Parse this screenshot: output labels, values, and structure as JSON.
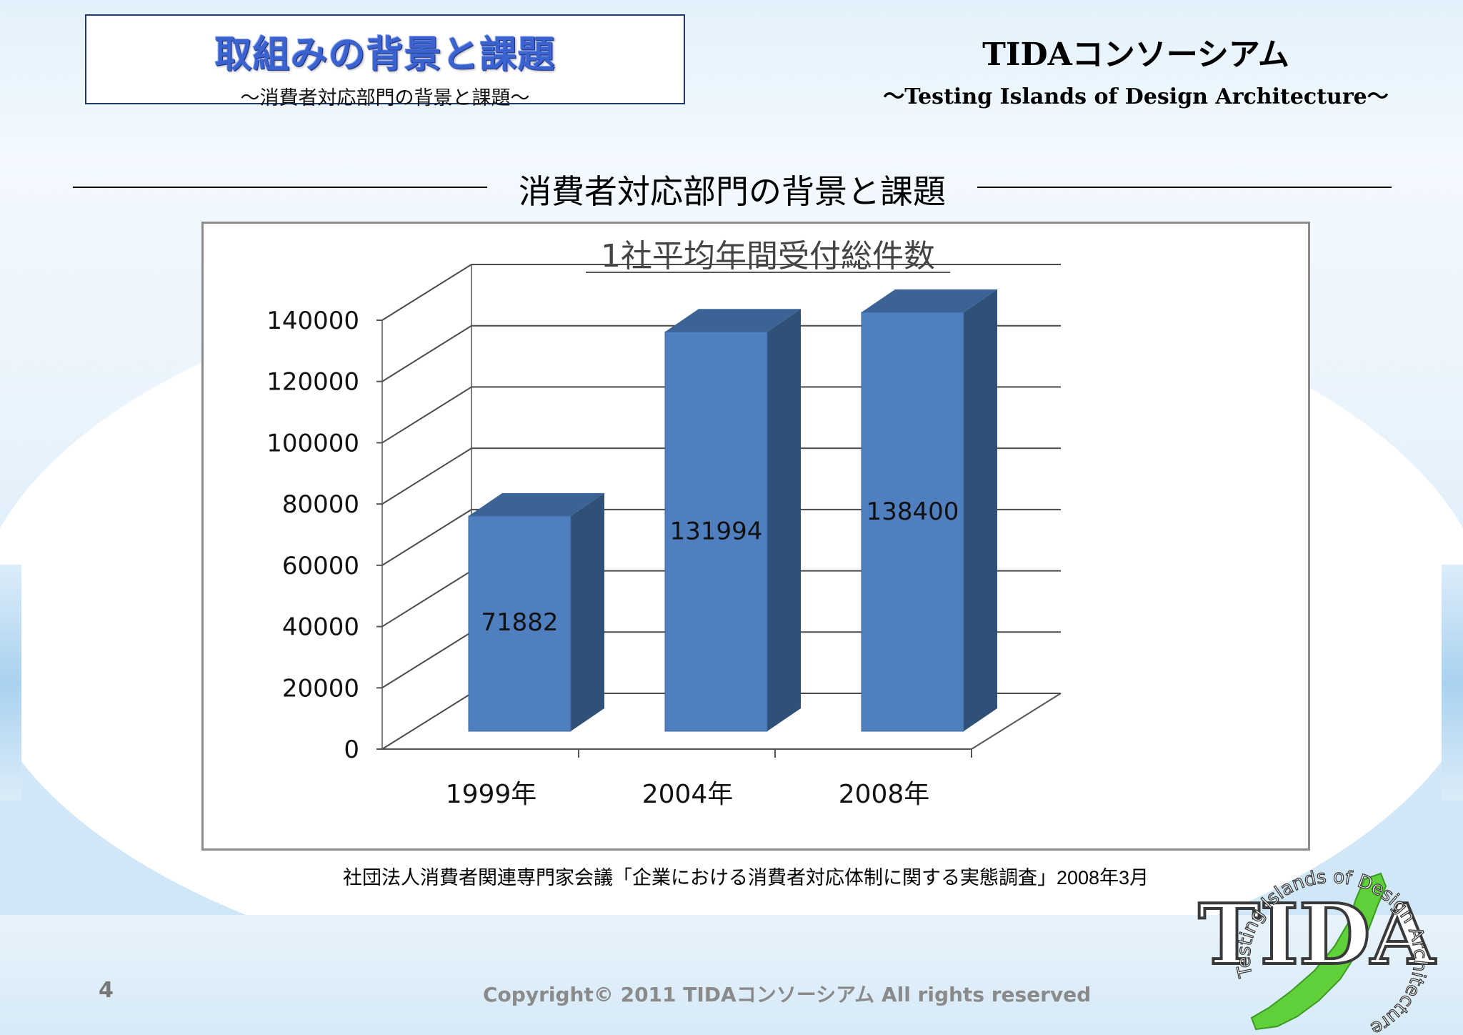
{
  "header": {
    "title": "取組みの背景と課題",
    "subtitle": "～消費者対応部門の背景と課題～",
    "brand_name": "TIDAコンソーシアム",
    "brand_tagline": "～Testing Islands of Design Architecture～"
  },
  "section": {
    "title": "消費者対応部門の背景と課題"
  },
  "chart_data": {
    "type": "bar",
    "title": "1社平均年間受付総件数",
    "categories": [
      "1999年",
      "2004年",
      "2008年"
    ],
    "values": [
      71882,
      131994,
      138400
    ],
    "data_labels": [
      "71882",
      "131994",
      "138400"
    ],
    "ylim": [
      0,
      140000
    ],
    "yticks": [
      "0",
      "20000",
      "40000",
      "60000",
      "80000",
      "100000",
      "120000",
      "140000"
    ],
    "grid": true,
    "three_d": true,
    "bar_color": "#4f7fbf",
    "bar_side_color": "#2f5178",
    "bar_top_color": "#3c6396"
  },
  "source_note": "社団法人消費者関連専門家会議「企業における消費者対応体制に関する実態調査」2008年3月",
  "footer": {
    "page_number": "4",
    "copyright": "Copyright© 2011 TIDAコンソーシアム All rights reserved"
  },
  "logo": {
    "text": "TIDA",
    "ring_text": "Testing Islands of Design Architecture"
  }
}
